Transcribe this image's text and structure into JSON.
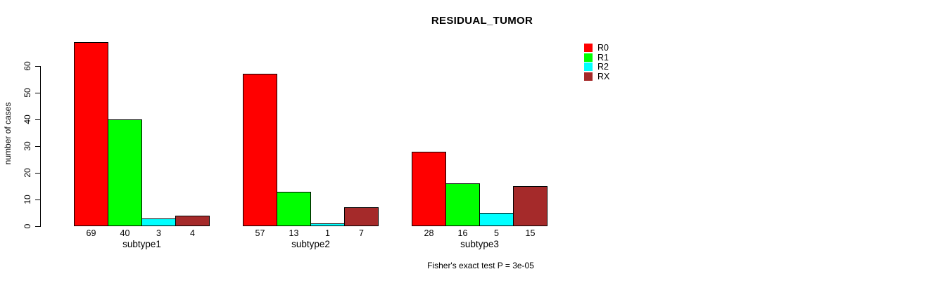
{
  "title": "RESIDUAL_TUMOR",
  "chart_data": {
    "type": "bar",
    "grouped": true,
    "title": "RESIDUAL_TUMOR",
    "ylabel": "number of cases",
    "xlabel": "",
    "ylim": [
      0,
      60
    ],
    "yticks": [
      0,
      10,
      20,
      30,
      40,
      50,
      60
    ],
    "grid": false,
    "categories": [
      "subtype1",
      "subtype2",
      "subtype3"
    ],
    "series": [
      {
        "name": "R0",
        "color": "#FF0000",
        "values": [
          69,
          57,
          28
        ]
      },
      {
        "name": "R1",
        "color": "#00FF00",
        "values": [
          40,
          13,
          16
        ]
      },
      {
        "name": "R2",
        "color": "#00FFFF",
        "values": [
          3,
          1,
          5
        ]
      },
      {
        "name": "RX",
        "color": "#A52A2A",
        "values": [
          4,
          7,
          15
        ]
      }
    ],
    "bar_value_labels_shown": true,
    "legend_position": "top-right",
    "annotation": "Fisher's exact test P = 3e-05"
  }
}
